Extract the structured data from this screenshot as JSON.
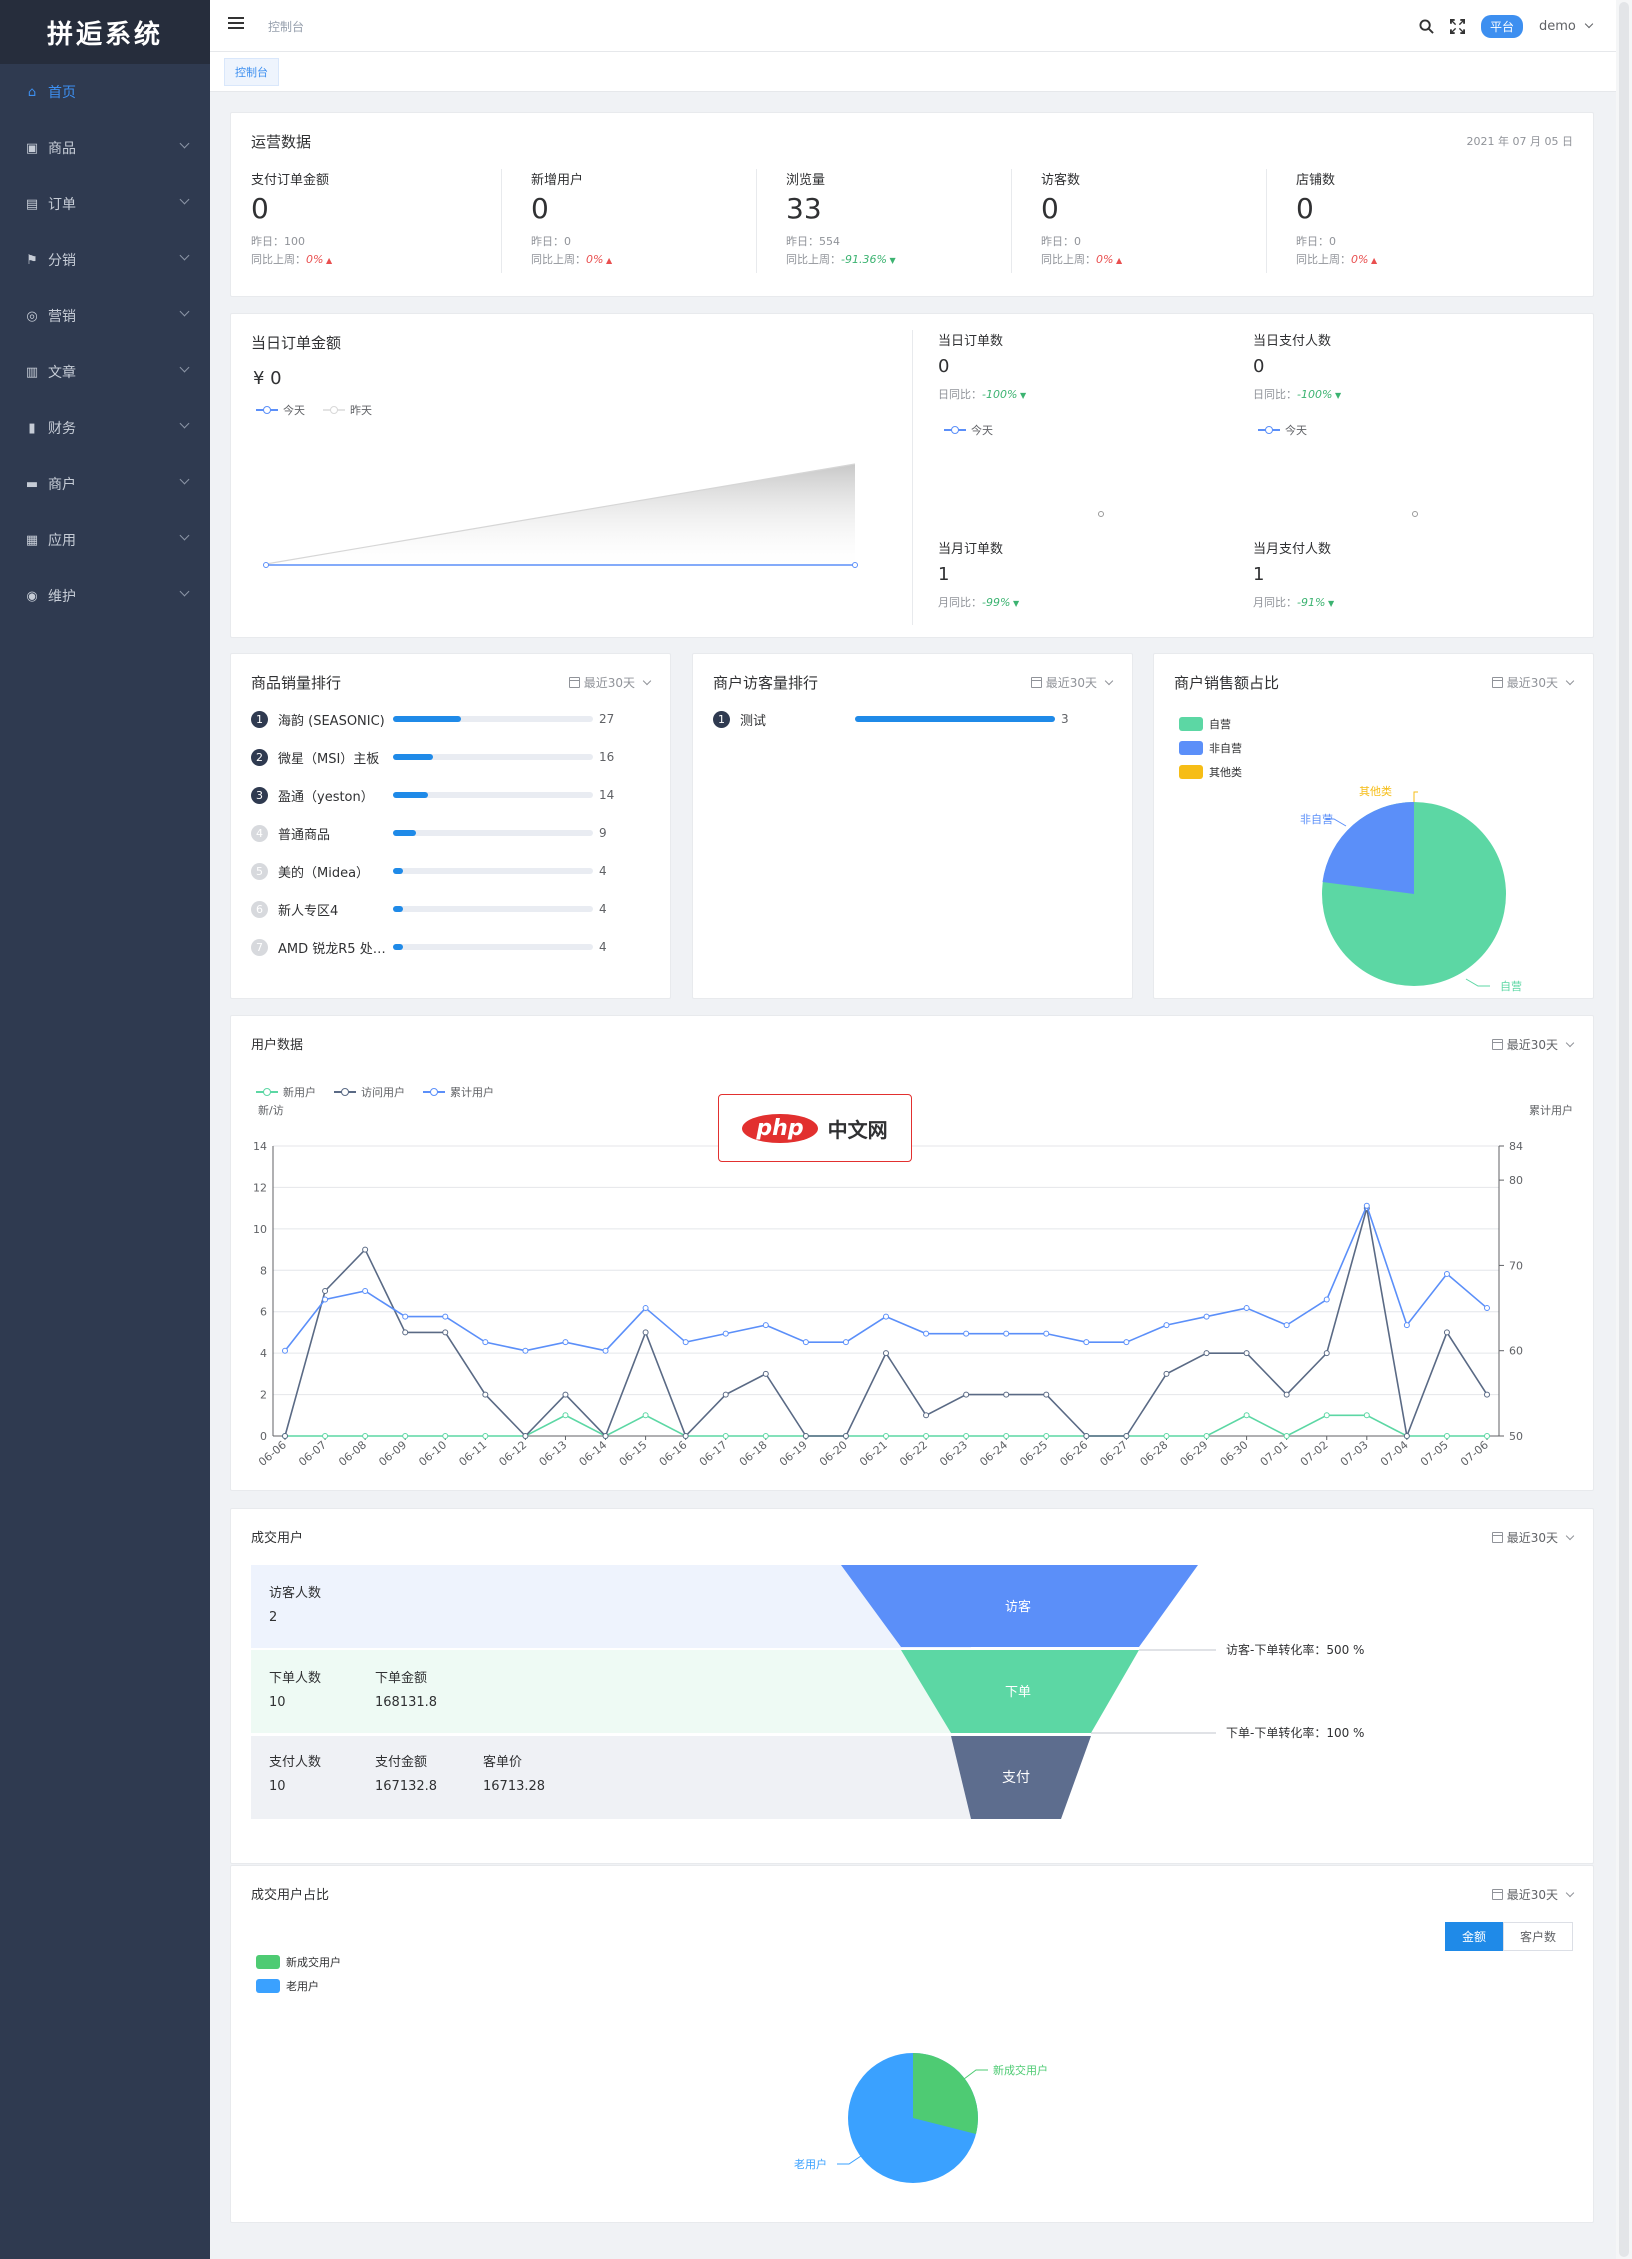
{
  "app": {
    "logo": "拼逅系统",
    "breadcrumb": "控制台",
    "badge": "平台",
    "user": "demo",
    "tab": "控制台"
  },
  "sidebar": [
    {
      "label": "首页",
      "icon": "home-icon"
    },
    {
      "label": "商品",
      "icon": "bag-icon"
    },
    {
      "label": "订单",
      "icon": "briefcase-icon"
    },
    {
      "label": "分销",
      "icon": "flag-icon"
    },
    {
      "label": "营销",
      "icon": "target-icon"
    },
    {
      "label": "文章",
      "icon": "books-icon"
    },
    {
      "label": "财务",
      "icon": "bar-chart-icon"
    },
    {
      "label": "商户",
      "icon": "store-icon"
    },
    {
      "label": "应用",
      "icon": "grid-icon"
    },
    {
      "label": "维护",
      "icon": "lifebuoy-icon"
    }
  ],
  "ops": {
    "title": "运营数据",
    "date": "2021 年 07 月 05 日",
    "stats": [
      {
        "label": "支付订单金额",
        "value": "0",
        "yesterday": "昨日：100",
        "wow_label": "同比上周：",
        "wow": "0%",
        "trend": "up"
      },
      {
        "label": "新增用户",
        "value": "0",
        "yesterday": "昨日：0",
        "wow_label": "同比上周：",
        "wow": "0%",
        "trend": "up"
      },
      {
        "label": "浏览量",
        "value": "33",
        "yesterday": "昨日：554",
        "wow_label": "同比上周：",
        "wow": "-91.36%",
        "trend": "down"
      },
      {
        "label": "访客数",
        "value": "0",
        "yesterday": "昨日：0",
        "wow_label": "同比上周：",
        "wow": "0%",
        "trend": "up"
      },
      {
        "label": "店铺数",
        "value": "0",
        "yesterday": "昨日：0",
        "wow_label": "同比上周：",
        "wow": "0%",
        "trend": "up"
      }
    ]
  },
  "today": {
    "title": "当日订单金额",
    "amount": "¥ 0",
    "legend_today": "今天",
    "legend_yesterday": "昨天",
    "mini": [
      {
        "label": "当日订单数",
        "value": "0",
        "cmp_label": "日同比：",
        "cmp": "-100%",
        "legend": "今天"
      },
      {
        "label": "当日支付人数",
        "value": "0",
        "cmp_label": "日同比：",
        "cmp": "-100%",
        "legend": "今天"
      },
      {
        "label": "当月订单数",
        "value": "1",
        "cmp_label": "月同比：",
        "cmp": "-99%"
      },
      {
        "label": "当月支付人数",
        "value": "1",
        "cmp_label": "月同比：",
        "cmp": "-91%"
      }
    ]
  },
  "rank": {
    "title": "商品销量排行",
    "period": "最近30天",
    "items": [
      {
        "no": "1",
        "name": "海韵 (SEASONIC)",
        "value": 27
      },
      {
        "no": "2",
        "name": "微星（MSI）主板",
        "value": 16
      },
      {
        "no": "3",
        "name": "盈通（yeston）",
        "value": 14
      },
      {
        "no": "4",
        "name": "普通商品",
        "value": 9
      },
      {
        "no": "5",
        "name": "美的（Midea）",
        "value": 4
      },
      {
        "no": "6",
        "name": "新人专区4",
        "value": 4
      },
      {
        "no": "7",
        "name": "AMD 锐龙R5 处理器",
        "value": 4
      }
    ]
  },
  "visitors": {
    "title": "商户访客量排行",
    "period": "最近30天",
    "items": [
      {
        "no": "1",
        "name": "测试",
        "value": 3
      }
    ]
  },
  "share": {
    "title": "商户销售额占比",
    "period": "最近30天",
    "legend": [
      {
        "name": "自营",
        "color": "#5cd7a4"
      },
      {
        "name": "非自营",
        "color": "#5b8ff9"
      },
      {
        "name": "其他类",
        "color": "#f6bd16"
      }
    ],
    "labels": {
      "self": "自营",
      "nonself": "非自营",
      "other": "其他类"
    }
  },
  "users": {
    "title": "用户数据",
    "period": "最近30天",
    "legend": [
      "新用户",
      "访问用户",
      "累计用户"
    ],
    "left_axis": "新/访",
    "right_axis": "累计用户"
  },
  "chart_data": {
    "type": "line",
    "x": [
      "06-06",
      "06-07",
      "06-08",
      "06-09",
      "06-10",
      "06-11",
      "06-12",
      "06-13",
      "06-14",
      "06-15",
      "06-16",
      "06-17",
      "06-18",
      "06-19",
      "06-20",
      "06-21",
      "06-22",
      "06-23",
      "06-24",
      "06-25",
      "06-26",
      "06-27",
      "06-28",
      "06-29",
      "06-30",
      "07-01",
      "07-02",
      "07-03",
      "07-04",
      "07-05",
      "07-06"
    ],
    "series": [
      {
        "name": "新用户",
        "axis": "left",
        "color": "#5cd7a4",
        "values": [
          0,
          0,
          0,
          0,
          0,
          0,
          0,
          1,
          0,
          1,
          0,
          0,
          0,
          0,
          0,
          0,
          0,
          0,
          0,
          0,
          0,
          0,
          0,
          0,
          1,
          0,
          1,
          1,
          0,
          0,
          0
        ]
      },
      {
        "name": "访问用户",
        "axis": "left",
        "color": "#5a6a85",
        "values": [
          0,
          7,
          9,
          5,
          5,
          2,
          0,
          2,
          0,
          5,
          0,
          2,
          3,
          0,
          0,
          4,
          1,
          2,
          2,
          2,
          0,
          0,
          3,
          4,
          4,
          2,
          4,
          11,
          0,
          5,
          2
        ]
      },
      {
        "name": "累计用户",
        "axis": "right",
        "color": "#5b8ff9",
        "values": [
          60,
          66,
          67,
          64,
          64,
          61,
          60,
          61,
          60,
          65,
          61,
          62,
          63,
          61,
          61,
          64,
          62,
          62,
          62,
          62,
          61,
          61,
          63,
          64,
          65,
          63,
          66,
          77,
          63,
          69,
          65
        ]
      }
    ],
    "y_left": {
      "ticks": [
        0,
        2,
        4,
        6,
        8,
        10,
        12,
        14
      ],
      "ylim": [
        0,
        14
      ]
    },
    "y_right": {
      "ticks": [
        50,
        60,
        70,
        80,
        84
      ],
      "ylim": [
        50,
        84
      ]
    }
  },
  "deal": {
    "title": "成交用户",
    "period": "最近30天",
    "rows": [
      {
        "fields": [
          {
            "label": "访客人数",
            "value": "2"
          }
        ],
        "stage": "访客",
        "bg": "#eef3fd",
        "color": "#5b8ff9"
      },
      {
        "fields": [
          {
            "label": "下单人数",
            "value": "10"
          },
          {
            "label": "下单金额",
            "value": "168131.8"
          }
        ],
        "stage": "下单",
        "bg": "#eefaf4",
        "color": "#5cd7a4"
      },
      {
        "fields": [
          {
            "label": "支付人数",
            "value": "10"
          },
          {
            "label": "支付金额",
            "value": "167132.8"
          },
          {
            "label": "客单价",
            "value": "16713.28"
          }
        ],
        "stage": "支付",
        "bg": "#eff1f5",
        "color": "#5d6d8e"
      }
    ],
    "conv1": "访客-下单转化率：500 %",
    "conv2": "下单-下单转化率：100 %"
  },
  "ratio": {
    "title": "成交用户占比",
    "period": "最近30天",
    "seg_all": "金额",
    "seg_cust": "客户数",
    "legend": [
      {
        "name": "新成交用户",
        "color": "#4ecb73"
      },
      {
        "name": "老用户",
        "color": "#3aa1ff"
      }
    ],
    "label_new": "新成交用户",
    "label_old": "老用户"
  },
  "watermark": {
    "pill": "php",
    "text": "中文网"
  }
}
